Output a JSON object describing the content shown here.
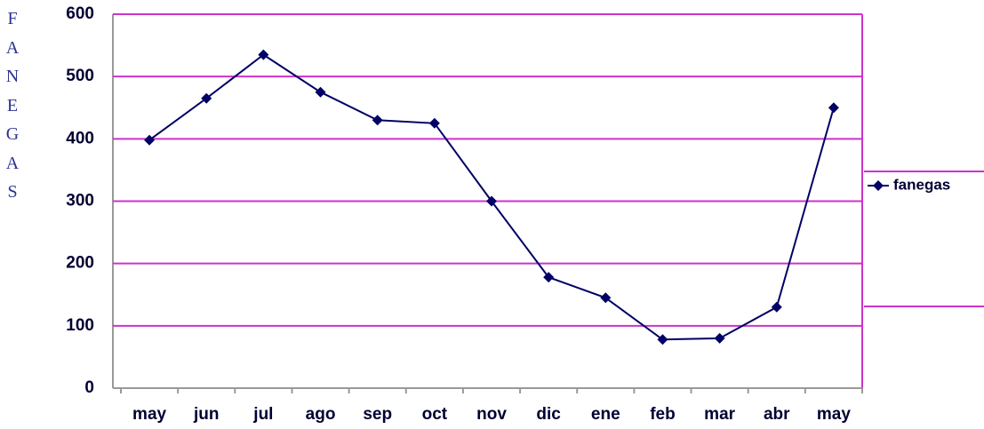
{
  "chart_data": {
    "type": "line",
    "y_label": "FANEGAS",
    "categories": [
      "may",
      "jun",
      "jul",
      "ago",
      "sep",
      "oct",
      "nov",
      "dic",
      "ene",
      "feb",
      "mar",
      "abr",
      "may"
    ],
    "series": [
      {
        "name": "fanegas",
        "color": "#000066",
        "values": [
          398,
          465,
          535,
          475,
          430,
          425,
          300,
          178,
          145,
          78,
          80,
          130,
          450
        ]
      }
    ],
    "ylim": [
      0,
      600
    ],
    "yticks": [
      0,
      100,
      200,
      300,
      400,
      500,
      600
    ],
    "grid": true,
    "grid_color": "#cc33cc",
    "legend": "right"
  }
}
